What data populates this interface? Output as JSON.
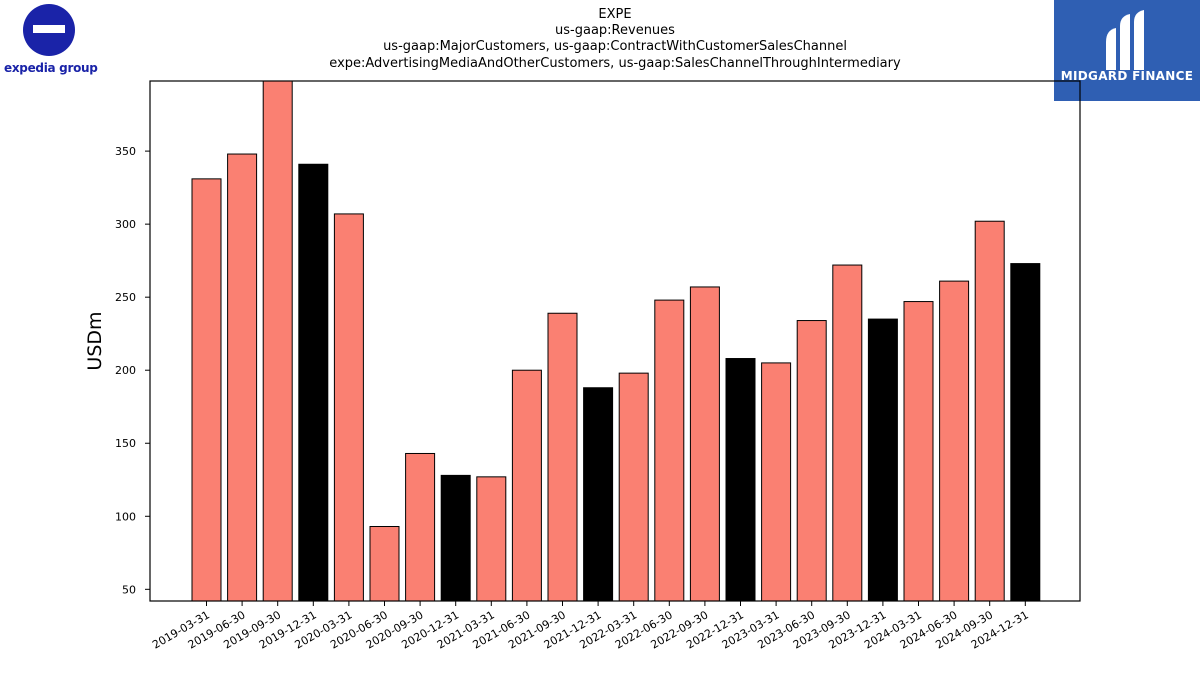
{
  "branding": {
    "left_logo_text": "expedia group",
    "right_logo_text": "MIDGARD FINANCE"
  },
  "colors": {
    "quarter_bar": "#fa8072",
    "year_end_bar": "#000000",
    "left_logo": "#1a23a8",
    "right_logo_bg": "#2f5fb3"
  },
  "chart_data": {
    "type": "bar",
    "title_lines": [
      "EXPE",
      "us-gaap:Revenues",
      "us-gaap:MajorCustomers, us-gaap:ContractWithCustomerSalesChannel",
      "expe:AdvertisingMediaAndOtherCustomers, us-gaap:SalesChannelThroughIntermediary"
    ],
    "ylabel": "USDm",
    "xlabel": "",
    "ylim": [
      42,
      398
    ],
    "yticks": [
      50,
      100,
      150,
      200,
      250,
      300,
      350
    ],
    "grid": false,
    "categories": [
      "2019-03-31",
      "2019-06-30",
      "2019-09-30",
      "2019-12-31",
      "2020-03-31",
      "2020-06-30",
      "2020-09-30",
      "2020-12-31",
      "2021-03-31",
      "2021-06-30",
      "2021-09-30",
      "2021-12-31",
      "2022-03-31",
      "2022-06-30",
      "2022-09-30",
      "2022-12-31",
      "2023-03-31",
      "2023-06-30",
      "2023-09-30",
      "2023-12-31",
      "2024-03-31",
      "2024-06-30",
      "2024-09-30",
      "2024-12-31"
    ],
    "values": [
      331,
      348,
      398,
      341,
      307,
      93,
      143,
      128,
      127,
      200,
      239,
      188,
      198,
      248,
      257,
      208,
      205,
      234,
      272,
      235,
      247,
      261,
      302,
      273
    ]
  }
}
